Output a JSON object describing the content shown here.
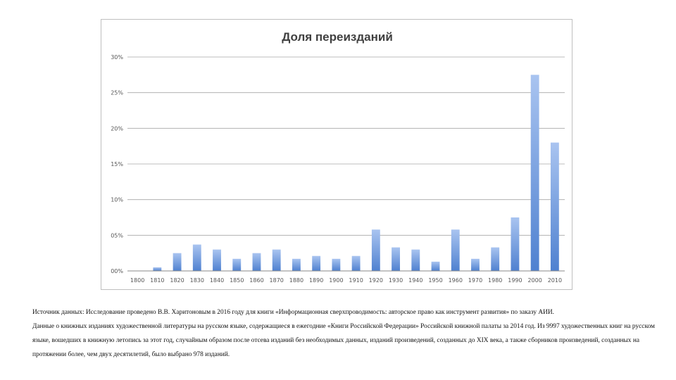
{
  "chart_data": {
    "type": "bar",
    "title": "Доля переизданий",
    "xlabel": "",
    "ylabel": "",
    "ylim": [
      0,
      30
    ],
    "y_ticks": [
      "00%",
      "05%",
      "10%",
      "15%",
      "20%",
      "25%",
      "30%"
    ],
    "y_tick_values": [
      0,
      5,
      10,
      15,
      20,
      25,
      30
    ],
    "categories": [
      "1800",
      "1810",
      "1820",
      "1830",
      "1840",
      "1850",
      "1860",
      "1870",
      "1880",
      "1890",
      "1900",
      "1910",
      "1920",
      "1930",
      "1940",
      "1950",
      "1960",
      "1970",
      "1980",
      "1990",
      "2000",
      "2010"
    ],
    "values": [
      0,
      0.5,
      2.5,
      3.7,
      3.0,
      1.7,
      2.5,
      3.0,
      1.7,
      2.1,
      1.7,
      2.1,
      5.8,
      3.3,
      3.0,
      1.3,
      5.8,
      1.7,
      3.3,
      7.5,
      27.5,
      18.0
    ],
    "grid": true,
    "legend": "none",
    "bar_color_top": "#a9c4f0",
    "bar_color_bottom": "#4f81d0"
  },
  "caption": {
    "line1": "Источник данных: Исследование проведено В.В. Харитоновым в 2016 году для книги «Информационная сверхпроводимость: авторское право как инструмент развития» по заказу АИИ.",
    "line2": "Данные о книжных изданиях художественной литературы на русском языке, содержащиеся в ежегодние «Книги Российской Федерации» Российской книжной палаты за 2014 год. Из 9997 художественных книг на русском языке, вошедших в книжную летопись за этот год, случайным образом после отсева изданий без необходимых данных, изданий произведений, созданных до XIX века, а также сборников произведений, созданных на протяжении более, чем двух десятилетий, было выбрано 978 изданий."
  }
}
